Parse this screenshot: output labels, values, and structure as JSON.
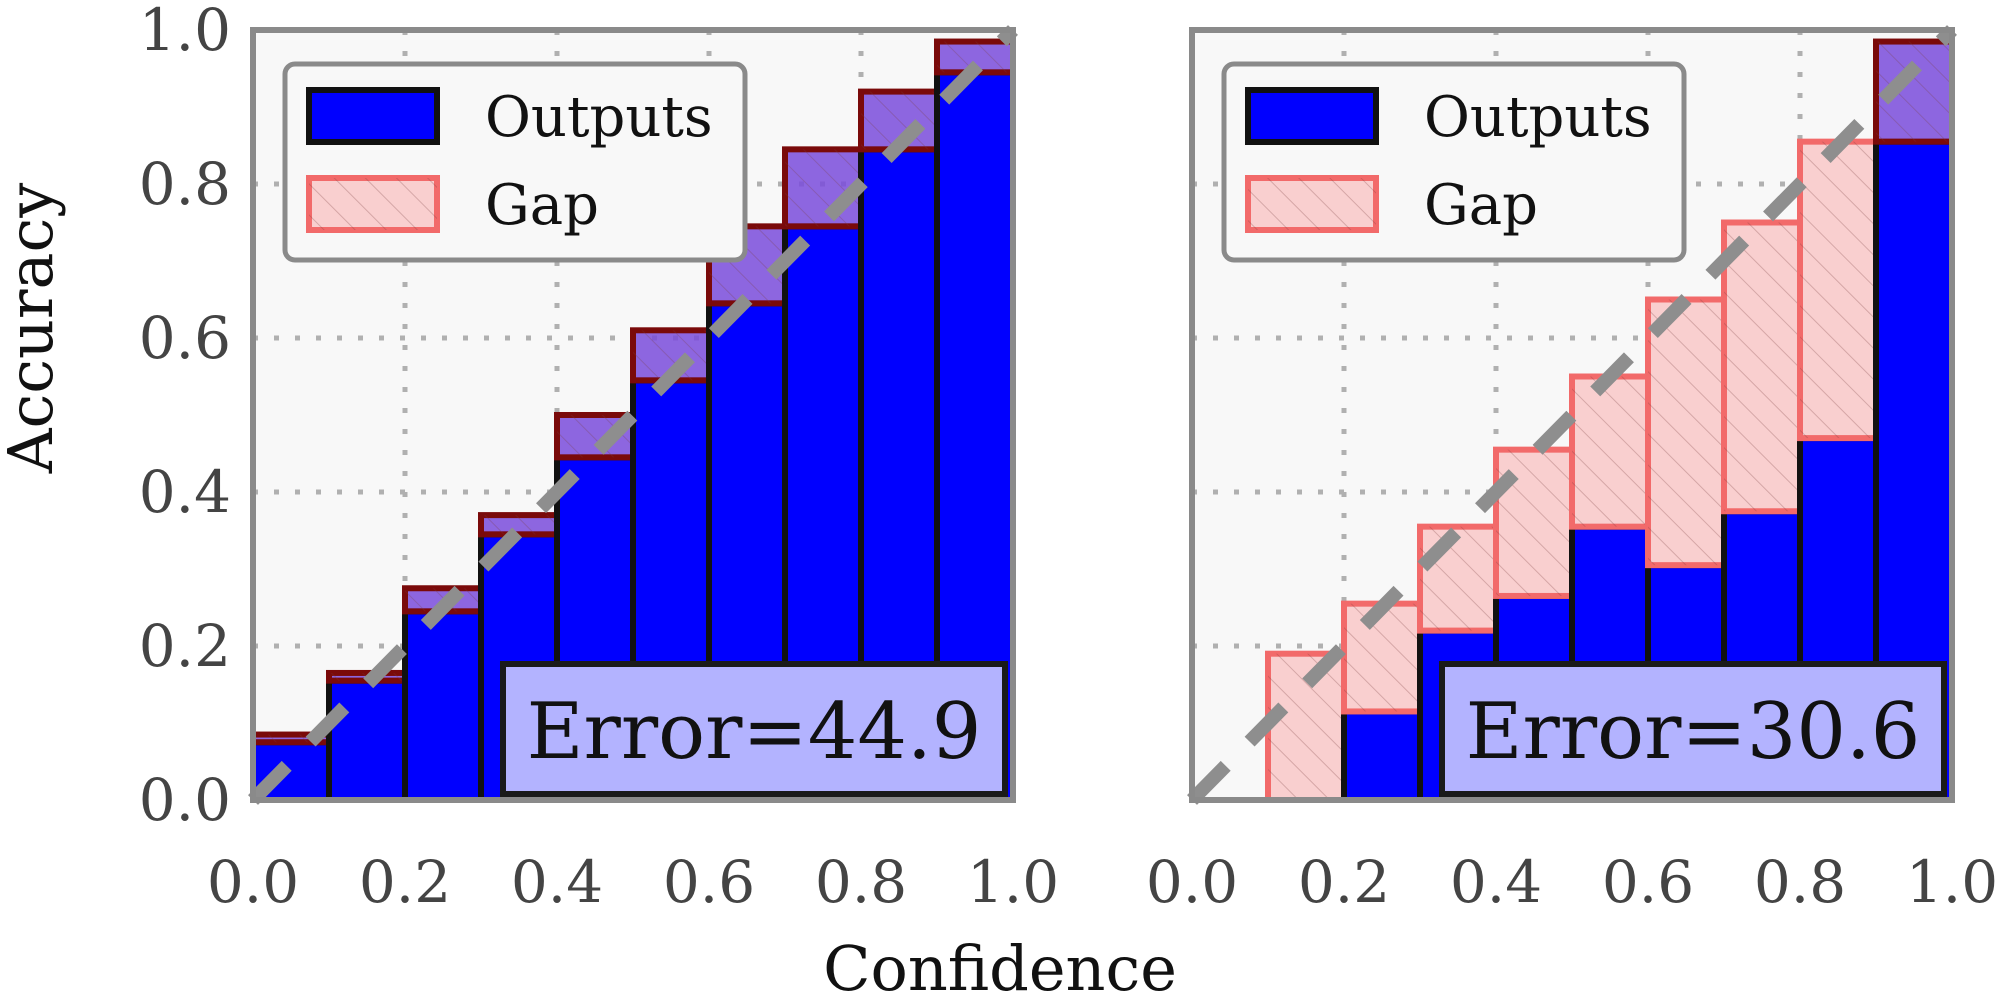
{
  "figure": {
    "xlabel": "Confidence",
    "ylabel": "Accuracy"
  },
  "colors": {
    "outputs_fill": "#0000ff",
    "outputs_edge": "#111111",
    "gap_fill_over": "#7a4cdc",
    "gap_edge_over": "#7a0a0a",
    "gap_fill_under": "#f9cfcf",
    "gap_edge_under": "#f26a6a",
    "background": "#f8f8f8",
    "frame": "#8a8a8a",
    "diagonal": "#8e8e8e",
    "error_box": "#b3b3ff"
  },
  "chart_data": [
    {
      "type": "bar",
      "bins": [
        0.05,
        0.15,
        0.25,
        0.35,
        0.45,
        0.55,
        0.65,
        0.75,
        0.85,
        0.95
      ],
      "accuracy": [
        0.075,
        0.155,
        0.245,
        0.345,
        0.445,
        0.545,
        0.645,
        0.745,
        0.845,
        0.945
      ],
      "gap_top": [
        0.085,
        0.165,
        0.275,
        0.37,
        0.5,
        0.61,
        0.745,
        0.845,
        0.92,
        0.985
      ],
      "xlim": [
        0,
        1
      ],
      "ylim": [
        0,
        1
      ],
      "xticks": [
        "0.0",
        "0.2",
        "0.4",
        "0.6",
        "0.8",
        "1.0"
      ],
      "yticks": [
        "0.0",
        "0.2",
        "0.4",
        "0.6",
        "0.8",
        "1.0"
      ],
      "legend": {
        "position": "upper-left",
        "entries": [
          "Outputs",
          "Gap"
        ]
      },
      "error_label": "Error=44.9",
      "grid": true,
      "diagonal": true
    },
    {
      "type": "bar",
      "bins": [
        0.05,
        0.15,
        0.25,
        0.35,
        0.45,
        0.55,
        0.65,
        0.75,
        0.85,
        0.95
      ],
      "accuracy": [
        0.0,
        0.0,
        0.115,
        0.22,
        0.265,
        0.355,
        0.305,
        0.375,
        0.47,
        0.855
      ],
      "gap_top": [
        0.0,
        0.19,
        0.255,
        0.355,
        0.455,
        0.55,
        0.65,
        0.75,
        0.855,
        0.985
      ],
      "xlim": [
        0,
        1
      ],
      "ylim": [
        0,
        1
      ],
      "xticks": [
        "0.0",
        "0.2",
        "0.4",
        "0.6",
        "0.8",
        "1.0"
      ],
      "yticks": [],
      "legend": {
        "position": "upper-left",
        "entries": [
          "Outputs",
          "Gap"
        ]
      },
      "error_label": "Error=30.6",
      "grid": true,
      "diagonal": true
    }
  ]
}
